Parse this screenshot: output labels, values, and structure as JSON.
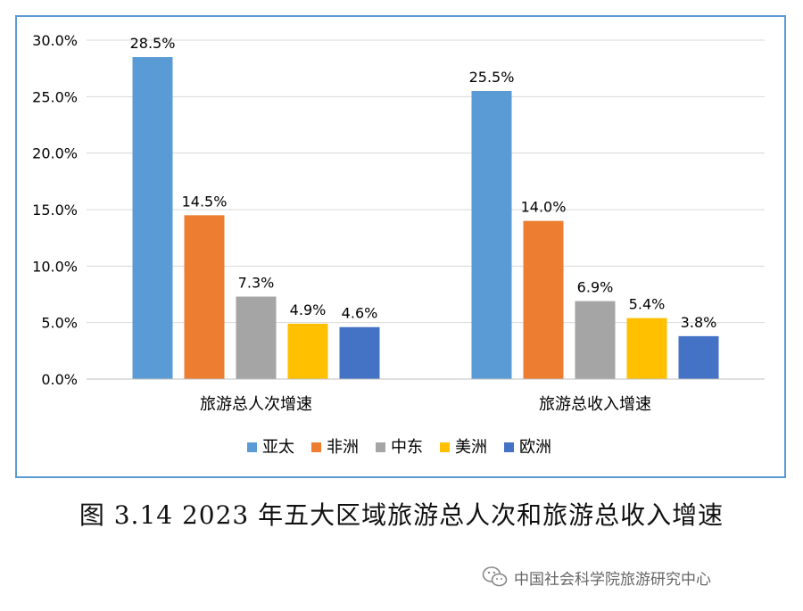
{
  "chart_data": {
    "type": "bar",
    "categories": [
      "旅游总人次增速",
      "旅游总收入增速"
    ],
    "series": [
      {
        "name": "亚太",
        "color": "#5b9bd5",
        "values": [
          28.5,
          25.5
        ],
        "labels": [
          "28.5%",
          "25.5%"
        ]
      },
      {
        "name": "非洲",
        "color": "#ed7d31",
        "values": [
          14.5,
          14.0
        ],
        "labels": [
          "14.5%",
          "14.0%"
        ]
      },
      {
        "name": "中东",
        "color": "#a5a5a5",
        "values": [
          7.3,
          6.9
        ],
        "labels": [
          "7.3%",
          "6.9%"
        ]
      },
      {
        "name": "美洲",
        "color": "#ffc000",
        "values": [
          4.9,
          5.4
        ],
        "labels": [
          "4.9%",
          "5.4%"
        ]
      },
      {
        "name": "欧洲",
        "color": "#4472c4",
        "values": [
          4.6,
          3.8
        ],
        "labels": [
          "4.6%",
          "3.8%"
        ]
      }
    ],
    "ylim": [
      0,
      30
    ],
    "yticks": [
      0,
      5,
      10,
      15,
      20,
      25,
      30
    ],
    "ytick_labels": [
      "0.0%",
      "5.0%",
      "10.0%",
      "15.0%",
      "20.0%",
      "25.0%",
      "30.0%"
    ],
    "grid": true,
    "legend": "bottom"
  },
  "caption": "图 3.14 2023 年五大区域旅游总人次和旅游总收入增速",
  "watermark": {
    "text": "中国社会科学院旅游研究中心",
    "icon": "wechat-icon"
  }
}
